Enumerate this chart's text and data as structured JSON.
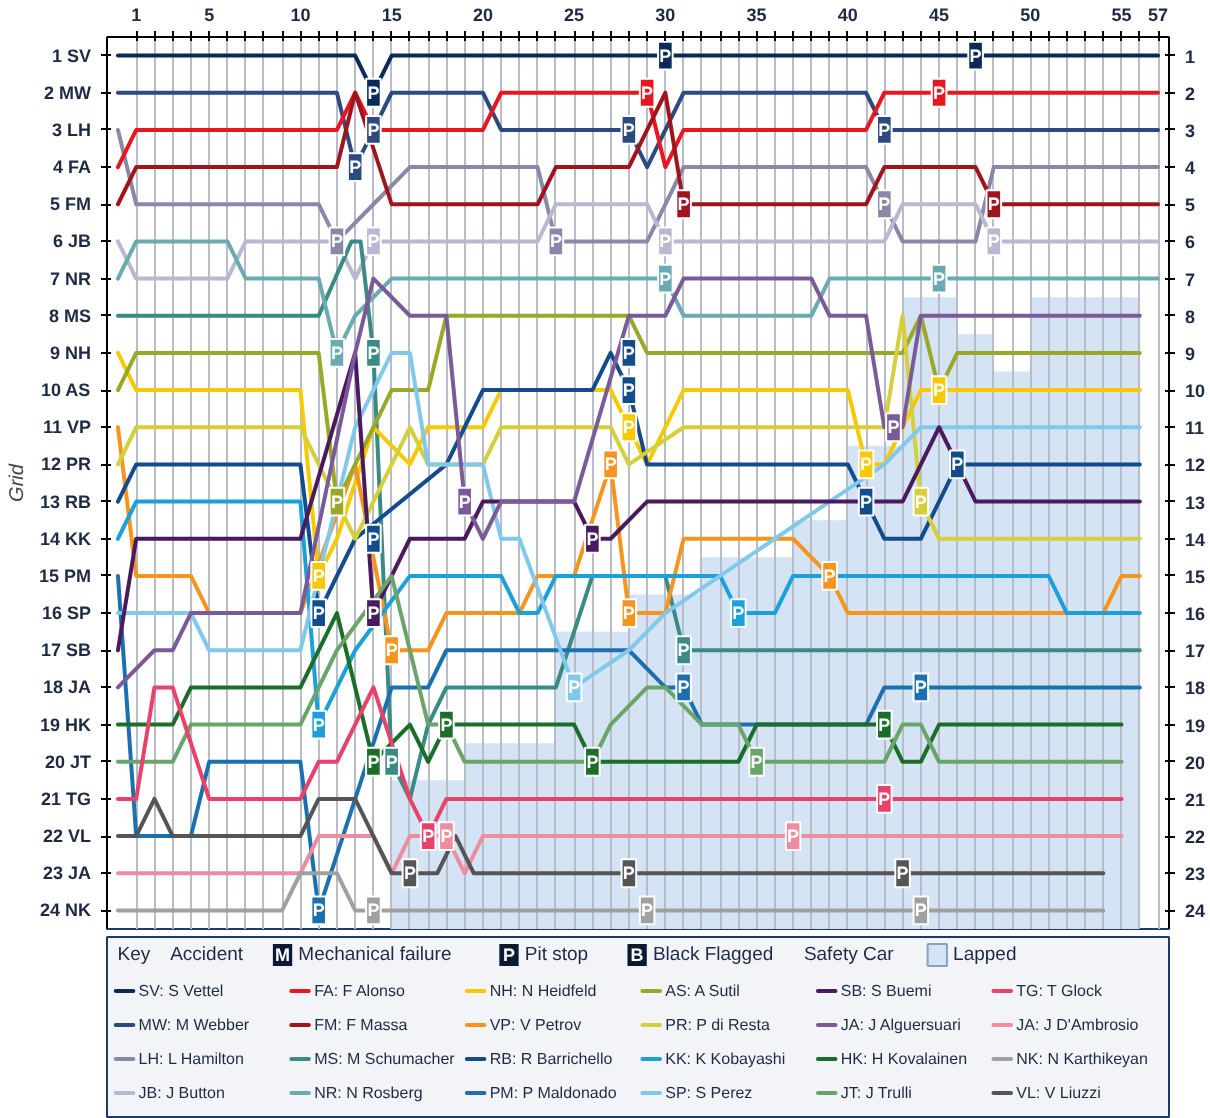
{
  "chart_data": {
    "type": "line",
    "ylabel": "Grid",
    "legend": "bottom",
    "grid": "x",
    "xlim": [
      -0.6,
      57.6
    ],
    "ylim": [
      24.5,
      0.5
    ],
    "y2lim": [
      24.5,
      0.5
    ],
    "xticks": [
      1,
      {
        "value": 2,
        "label": null
      },
      {
        "value": 3,
        "label": null
      },
      {
        "value": 4,
        "label": null
      },
      5,
      {
        "value": 6,
        "label": null
      },
      {
        "value": 7,
        "label": null
      },
      {
        "value": 8,
        "label": null
      },
      {
        "value": 9,
        "label": null
      },
      10,
      {
        "value": 11,
        "label": null
      },
      {
        "value": 12,
        "label": null
      },
      {
        "value": 13,
        "label": null
      },
      {
        "value": 14,
        "label": null
      },
      15,
      {
        "value": 16,
        "label": null
      },
      {
        "value": 17,
        "label": null
      },
      {
        "value": 18,
        "label": null
      },
      {
        "value": 19,
        "label": null
      },
      20,
      {
        "value": 21,
        "label": null
      },
      {
        "value": 22,
        "label": null
      },
      {
        "value": 23,
        "label": null
      },
      {
        "value": 24,
        "label": null
      },
      25,
      {
        "value": 26,
        "label": null
      },
      {
        "value": 27,
        "label": null
      },
      {
        "value": 28,
        "label": null
      },
      {
        "value": 29,
        "label": null
      },
      30,
      {
        "value": 31,
        "label": null
      },
      {
        "value": 32,
        "label": null
      },
      {
        "value": 33,
        "label": null
      },
      {
        "value": 34,
        "label": null
      },
      35,
      {
        "value": 36,
        "label": null
      },
      {
        "value": 37,
        "label": null
      },
      {
        "value": 38,
        "label": null
      },
      {
        "value": 39,
        "label": null
      },
      40,
      {
        "value": 41,
        "label": null
      },
      {
        "value": 42,
        "label": null
      },
      {
        "value": 43,
        "label": null
      },
      {
        "value": 44,
        "label": null
      },
      45,
      {
        "value": 46,
        "label": null
      },
      {
        "value": 47,
        "label": null
      },
      {
        "value": 48,
        "label": null
      },
      {
        "value": 49,
        "label": null
      },
      50,
      {
        "value": 51,
        "label": null
      },
      {
        "value": 52,
        "label": null
      },
      {
        "value": 53,
        "label": null
      },
      {
        "value": 54,
        "label": null
      },
      55,
      {
        "value": 56,
        "label": null
      },
      57
    ],
    "yticks": [
      {
        "value": 1,
        "label": "1 SV"
      },
      {
        "value": 2,
        "label": "2 MW"
      },
      {
        "value": 3,
        "label": "3 LH"
      },
      {
        "value": 4,
        "label": "4 FA"
      },
      {
        "value": 5,
        "label": "5 FM"
      },
      {
        "value": 6,
        "label": "6 JB"
      },
      {
        "value": 7,
        "label": "7 NR"
      },
      {
        "value": 8,
        "label": "8 MS"
      },
      {
        "value": 9,
        "label": "9 NH"
      },
      {
        "value": 10,
        "label": "10 AS"
      },
      {
        "value": 11,
        "label": "11 VP"
      },
      {
        "value": 12,
        "label": "12 PR"
      },
      {
        "value": 13,
        "label": "13 RB"
      },
      {
        "value": 14,
        "label": "14 KK"
      },
      {
        "value": 15,
        "label": "15 PM"
      },
      {
        "value": 16,
        "label": "16 SP"
      },
      {
        "value": 17,
        "label": "17 SB"
      },
      {
        "value": 18,
        "label": "18 JA"
      },
      {
        "value": 19,
        "label": "19 HK"
      },
      {
        "value": 20,
        "label": "20 JT"
      },
      {
        "value": 21,
        "label": "21 TG"
      },
      {
        "value": 22,
        "label": "22 VL"
      },
      {
        "value": 23,
        "label": "23 JA"
      },
      {
        "value": 24,
        "label": "24 NK"
      }
    ],
    "y2ticks": [
      1,
      2,
      3,
      4,
      5,
      6,
      7,
      8,
      9,
      10,
      11,
      12,
      13,
      14,
      15,
      16,
      17,
      18,
      19,
      20,
      21,
      22,
      23,
      24
    ],
    "series": [
      {
        "name": "Lapped",
        "type": "area",
        "color": "#d4e4f4",
        "x": [
          15,
          19,
          19,
          24,
          24,
          28,
          28,
          32,
          32,
          37,
          37,
          40,
          40,
          43,
          43,
          46,
          46,
          48,
          48,
          50,
          50,
          56
        ],
        "values": [
          20.5,
          20.5,
          19.5,
          19.5,
          16.5,
          16.5,
          15.5,
          15.5,
          14.5,
          14.5,
          13.5,
          13.5,
          11.5,
          11.5,
          7.5,
          7.5,
          8.5,
          8.5,
          9.5,
          9.5,
          7.5,
          7.5
        ]
      },
      {
        "name": "SV: S Vettel",
        "color": "#0b2a5a",
        "x": [
          0,
          13,
          14,
          15,
          57
        ],
        "values": [
          1,
          1,
          2,
          1,
          1
        ]
      },
      {
        "name": "MW: M Webber",
        "color": "#2a4a80",
        "x": [
          0,
          12,
          13,
          15,
          20,
          21,
          28,
          29,
          31,
          41,
          42,
          57
        ],
        "values": [
          2,
          2,
          4,
          2,
          2,
          3,
          3,
          4,
          2,
          2,
          3,
          3
        ]
      },
      {
        "name": "LH: L Hamilton",
        "color": "#8a88a8",
        "x": [
          0,
          1,
          11,
          12,
          14,
          16,
          23,
          24,
          29,
          31,
          41,
          42,
          43,
          47,
          48,
          57
        ],
        "values": [
          3,
          5,
          5,
          6,
          5,
          4,
          4,
          6,
          6,
          4,
          4,
          5,
          6,
          6,
          4,
          4
        ]
      },
      {
        "name": "JB: J Button",
        "color": "#b8b8d0",
        "x": [
          0,
          1,
          6,
          7,
          12,
          13,
          14,
          23,
          24,
          29,
          30,
          31,
          42,
          43,
          47,
          48,
          57
        ],
        "values": [
          6,
          7,
          7,
          6,
          6,
          7,
          6,
          6,
          5,
          5,
          6,
          6,
          6,
          5,
          5,
          6,
          6
        ]
      },
      {
        "name": "FA: F Alonso",
        "color": "#e8171f",
        "x": [
          0,
          1,
          12,
          13,
          14,
          20,
          21,
          29,
          30,
          31,
          41,
          42,
          57
        ],
        "values": [
          4,
          3,
          3,
          2,
          3,
          3,
          2,
          2,
          4,
          3,
          3,
          2,
          2
        ]
      },
      {
        "name": "FM: F Massa",
        "color": "#a0141e",
        "x": [
          0,
          1,
          12,
          13,
          15,
          23,
          24,
          28,
          30,
          31,
          41,
          42,
          47,
          48,
          57
        ],
        "values": [
          5,
          4,
          4,
          2,
          5,
          5,
          4,
          4,
          2,
          5,
          5,
          4,
          4,
          5,
          5
        ]
      },
      {
        "name": "MS: M Schumacher",
        "color": "#3a8a86",
        "x": [
          0,
          11,
          12.8,
          13.3,
          14,
          15,
          16,
          17,
          18,
          24,
          26,
          30,
          31,
          56
        ],
        "values": [
          8,
          8,
          6,
          6,
          9,
          20,
          21,
          19,
          18,
          18,
          15,
          15,
          17,
          17
        ]
      },
      {
        "name": "NR: N Rosberg",
        "color": "#6aaab0",
        "x": [
          0,
          1,
          6,
          7,
          11,
          12,
          13,
          15,
          30,
          31,
          38,
          39,
          57
        ],
        "values": [
          7,
          6,
          6,
          7,
          7,
          9,
          8,
          7,
          7,
          8,
          8,
          7,
          7
        ]
      },
      {
        "name": "NH: N Heidfeld",
        "color": "#f8c800",
        "x": [
          0,
          1,
          10,
          11,
          12,
          14,
          16,
          17,
          20,
          21,
          27,
          28,
          29,
          31,
          40,
          41,
          42,
          44,
          45,
          56
        ],
        "values": [
          9,
          10,
          10,
          15,
          14,
          11,
          12,
          11,
          11,
          10,
          10,
          11,
          12,
          10,
          10,
          12,
          12,
          10,
          10,
          10
        ]
      },
      {
        "name": "VP: V Petrov",
        "color": "#f7941d",
        "x": [
          0,
          1,
          4,
          5,
          10,
          13,
          15,
          17,
          18,
          22,
          23,
          25,
          27,
          28,
          30,
          31,
          37,
          39,
          40,
          54,
          55,
          56
        ],
        "values": [
          11,
          15,
          15,
          16,
          16,
          12,
          17,
          17,
          16,
          16,
          15,
          15,
          12,
          16,
          16,
          14,
          14,
          15,
          16,
          16,
          15,
          15
        ]
      },
      {
        "name": "RB: R Barrichello",
        "color": "#124c8c",
        "x": [
          0,
          1,
          10,
          11,
          13,
          18,
          19,
          20,
          26,
          27,
          28,
          29,
          40,
          41,
          42,
          44,
          46,
          56
        ],
        "values": [
          13,
          12,
          12,
          16,
          14,
          12,
          11,
          10,
          10,
          9,
          10,
          12,
          12,
          13,
          14,
          14,
          12,
          12
        ]
      },
      {
        "name": "PM: P Maldonado",
        "color": "#1c70b0",
        "x": [
          0,
          1,
          4,
          5,
          10,
          11,
          15,
          17,
          18,
          28,
          30,
          31,
          32,
          41,
          42,
          56
        ],
        "values": [
          15,
          22,
          22,
          20,
          20,
          24,
          18,
          18,
          17,
          17,
          18,
          18,
          19,
          19,
          18,
          18
        ]
      },
      {
        "name": "AS: A Sutil",
        "color": "#9aa828",
        "x": [
          0,
          1,
          11,
          12,
          15,
          17,
          18,
          28,
          29,
          43,
          44,
          45,
          46,
          56
        ],
        "values": [
          10,
          9,
          9,
          13,
          10,
          10,
          8,
          8,
          9,
          9,
          8,
          10,
          9,
          9
        ]
      },
      {
        "name": "PR: P di Resta",
        "color": "#d4cf3a",
        "x": [
          0,
          1,
          10,
          13,
          16,
          17,
          20,
          21,
          27,
          28,
          31,
          42,
          43,
          44,
          45,
          46,
          56
        ],
        "values": [
          12,
          11,
          11,
          14,
          11,
          12,
          12,
          11,
          11,
          12,
          11,
          11,
          8,
          13,
          14,
          14,
          14
        ]
      },
      {
        "name": "KK: K Kobayashi",
        "color": "#1ca0dc",
        "x": [
          0,
          1,
          10,
          11,
          13,
          16,
          21,
          22,
          23,
          24,
          33,
          34,
          36,
          37,
          51,
          52,
          56
        ],
        "values": [
          14,
          13,
          13,
          19,
          17,
          15,
          15,
          16,
          16,
          15,
          15,
          16,
          16,
          15,
          15,
          16,
          16
        ]
      },
      {
        "name": "SP: S Perez",
        "color": "#80c8ec",
        "x": [
          0,
          4,
          5,
          10,
          13,
          15,
          16,
          17,
          20,
          21,
          22,
          25,
          28,
          30,
          33,
          36,
          39,
          42,
          44,
          56
        ],
        "values": [
          16,
          16,
          17,
          17,
          11,
          9,
          9,
          12,
          12,
          14,
          14,
          18,
          17,
          16,
          15,
          14,
          13,
          12,
          11,
          11
        ]
      },
      {
        "name": "SB: S Buemi",
        "color": "#4a1a5e",
        "x": [
          0,
          1,
          10,
          13,
          14,
          16,
          19,
          20,
          25,
          26,
          27,
          29,
          43,
          45,
          46,
          47,
          56
        ],
        "values": [
          17,
          14,
          14,
          9,
          16,
          14,
          14,
          13,
          13,
          14,
          14,
          13,
          13,
          11,
          12,
          13,
          13
        ]
      },
      {
        "name": "JA: J Alguersuari",
        "color": "#7a5a98",
        "x": [
          0,
          2,
          3,
          4,
          10,
          13,
          14,
          16,
          18,
          19,
          20,
          21,
          25,
          28,
          30,
          31,
          38,
          39,
          41,
          42,
          43,
          44,
          56
        ],
        "values": [
          18,
          17,
          17,
          16,
          16,
          9,
          7,
          8,
          8,
          13,
          14,
          13,
          13,
          8,
          8,
          7,
          7,
          8,
          8,
          11,
          11,
          8,
          8
        ]
      },
      {
        "name": "HK: H Kovalainen",
        "color": "#1a6e2a",
        "x": [
          0,
          3,
          4,
          10,
          12,
          14,
          16,
          17,
          18,
          19,
          25,
          26,
          34,
          35,
          42,
          43,
          44,
          45,
          55
        ],
        "values": [
          19,
          19,
          18,
          18,
          16,
          20,
          19,
          20,
          19,
          19,
          19,
          20,
          20,
          19,
          19,
          20,
          20,
          19,
          19
        ]
      },
      {
        "name": "JT: J Trulli",
        "color": "#6aa46a",
        "x": [
          0,
          3,
          4,
          10,
          12,
          15,
          17,
          18,
          19,
          26,
          27,
          29,
          30,
          32,
          34,
          35,
          42,
          43,
          44,
          45,
          55
        ],
        "values": [
          20,
          20,
          19,
          19,
          17,
          15,
          19,
          19,
          20,
          20,
          19,
          18,
          18,
          19,
          19,
          20,
          20,
          19,
          19,
          20,
          20
        ]
      },
      {
        "name": "TG: T Glock",
        "color": "#e8416a",
        "x": [
          0,
          1,
          2,
          3,
          5,
          10,
          11,
          12,
          14,
          16,
          17,
          18,
          55
        ],
        "values": [
          21,
          21,
          18,
          18,
          21,
          21,
          20,
          20,
          18,
          21,
          22,
          21,
          21
        ]
      },
      {
        "name": "JA: J D'Ambrosio",
        "color": "#f08ca0",
        "x": [
          0,
          10,
          11,
          14,
          15,
          16,
          18,
          19,
          20,
          55
        ],
        "values": [
          23,
          23,
          22,
          22,
          23,
          22,
          22,
          23,
          22,
          22
        ]
      },
      {
        "name": "NK: N Karthikeyan",
        "color": "#a0a0a0",
        "x": [
          0,
          9,
          10,
          12,
          13,
          54
        ],
        "values": [
          24,
          24,
          23,
          23,
          24,
          24
        ]
      },
      {
        "name": "VL: V Liuzzi",
        "color": "#555555",
        "x": [
          0,
          1,
          2,
          3,
          10,
          11,
          13,
          14,
          15,
          17.5,
          18.5,
          19.5,
          54
        ],
        "values": [
          22,
          22,
          21,
          22,
          22,
          21,
          21,
          22,
          23,
          23,
          22,
          23,
          23
        ]
      }
    ],
    "annotations": [
      "Key",
      "Accident",
      "M",
      "Mechanical failure",
      "P",
      "Pit stop",
      "B",
      "Black Flagged",
      "Safety Car",
      {
        "text": "P",
        "x": 14,
        "y": 2
      },
      {
        "text": "P",
        "x": 30,
        "y": 1
      },
      {
        "text": "P",
        "x": 47,
        "y": 1
      },
      {
        "text": "P",
        "x": 13,
        "y": 4
      },
      {
        "text": "P",
        "x": 28,
        "y": 3
      },
      {
        "text": "P",
        "x": 42,
        "y": 3
      },
      {
        "text": "P",
        "x": 14,
        "y": 3
      },
      {
        "text": "P",
        "x": 29,
        "y": 2
      },
      {
        "text": "P",
        "x": 45,
        "y": 2
      },
      {
        "text": "P",
        "x": 31,
        "y": 5
      },
      {
        "text": "P",
        "x": 48,
        "y": 5
      },
      {
        "text": "P",
        "x": 12,
        "y": 6
      },
      {
        "text": "P",
        "x": 24,
        "y": 6
      },
      {
        "text": "P",
        "x": 42,
        "y": 5
      },
      {
        "text": "P",
        "x": 14,
        "y": 6
      },
      {
        "text": "P",
        "x": 30,
        "y": 6
      },
      {
        "text": "P",
        "x": 48,
        "y": 6
      },
      {
        "text": "P",
        "x": 12,
        "y": 9
      },
      {
        "text": "P",
        "x": 30,
        "y": 7
      },
      {
        "text": "P",
        "x": 45,
        "y": 7
      },
      {
        "text": "P",
        "x": 14,
        "y": 9
      },
      {
        "text": "P",
        "x": 15,
        "y": 20
      },
      {
        "text": "P",
        "x": 31,
        "y": 17
      },
      {
        "text": "P",
        "x": 12,
        "y": 13
      },
      {
        "text": "P",
        "x": 28,
        "y": 9
      },
      {
        "text": "P",
        "x": 45,
        "y": 10
      },
      {
        "text": "P",
        "x": 11,
        "y": 15
      },
      {
        "text": "P",
        "x": 28,
        "y": 11
      },
      {
        "text": "P",
        "x": 41,
        "y": 12
      },
      {
        "text": "P",
        "x": 14,
        "y": 14
      },
      {
        "text": "P",
        "x": 27,
        "y": 12
      },
      {
        "text": "P",
        "x": 44,
        "y": 13
      },
      {
        "text": "P",
        "x": 15,
        "y": 17
      },
      {
        "text": "P",
        "x": 28,
        "y": 16
      },
      {
        "text": "P",
        "x": 39,
        "y": 15
      },
      {
        "text": "P",
        "x": 11,
        "y": 16
      },
      {
        "text": "P",
        "x": 28,
        "y": 10
      },
      {
        "text": "P",
        "x": 41,
        "y": 13
      },
      {
        "text": "P",
        "x": 11,
        "y": 19
      },
      {
        "text": "P",
        "x": 34,
        "y": 16
      },
      {
        "text": "P",
        "x": 11,
        "y": 24
      },
      {
        "text": "P",
        "x": 31,
        "y": 18
      },
      {
        "text": "P",
        "x": 44,
        "y": 18
      },
      {
        "text": "P",
        "x": 25,
        "y": 18
      },
      {
        "text": "P",
        "x": 14,
        "y": 16
      },
      {
        "text": "P",
        "x": 26,
        "y": 14
      },
      {
        "text": "P",
        "x": 46,
        "y": 12
      },
      {
        "text": "P",
        "x": 19,
        "y": 13
      },
      {
        "text": "P",
        "x": 42.5,
        "y": 11
      },
      {
        "text": "P",
        "x": 14,
        "y": 20
      },
      {
        "text": "P",
        "x": 26,
        "y": 20
      },
      {
        "text": "P",
        "x": 42,
        "y": 19
      },
      {
        "text": "P",
        "x": 18,
        "y": 19
      },
      {
        "text": "P",
        "x": 35,
        "y": 20
      },
      {
        "text": "P",
        "x": 17,
        "y": 22
      },
      {
        "text": "P",
        "x": 42,
        "y": 21
      },
      {
        "text": "P",
        "x": 18,
        "y": 22
      },
      {
        "text": "P",
        "x": 37,
        "y": 22
      },
      {
        "text": "P",
        "x": 16,
        "y": 23
      },
      {
        "text": "P",
        "x": 28,
        "y": 23
      },
      {
        "text": "P",
        "x": 43,
        "y": 23
      },
      {
        "text": "P",
        "x": 14,
        "y": 24
      },
      {
        "text": "P",
        "x": 29,
        "y": 24
      },
      {
        "text": "P",
        "x": 44,
        "y": 24
      }
    ]
  }
}
